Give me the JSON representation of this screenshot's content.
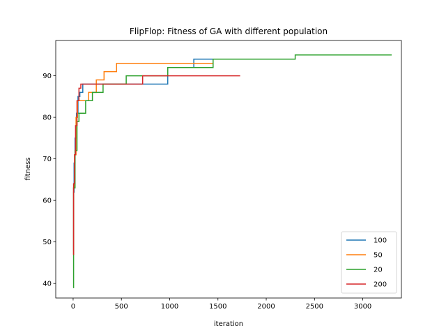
{
  "chart_data": {
    "type": "line",
    "title": "FlipFlop: Fitness of GA with different population",
    "xlabel": "iteration",
    "ylabel": "fitness",
    "xlim": [
      -180,
      3400
    ],
    "ylim": [
      36.5,
      98.5
    ],
    "xticks": [
      0,
      500,
      1000,
      1500,
      2000,
      2500,
      3000
    ],
    "yticks": [
      40,
      50,
      60,
      70,
      80,
      90
    ],
    "grid": false,
    "legend_position": "bottom-right",
    "series": [
      {
        "name": "100",
        "color": "#1f77b4",
        "x": [
          0,
          5,
          10,
          20,
          35,
          50,
          70,
          100,
          200,
          300,
          500,
          700,
          880,
          980,
          1250,
          1450,
          1700
        ],
        "y": [
          48,
          62,
          69,
          75,
          81,
          85,
          86,
          88,
          88,
          88,
          88,
          88,
          88,
          92,
          94,
          94,
          94
        ]
      },
      {
        "name": "50",
        "color": "#ff7f0e",
        "x": [
          0,
          5,
          15,
          30,
          45,
          60,
          80,
          100,
          130,
          160,
          240,
          320,
          450,
          700,
          1000,
          1250,
          1450
        ],
        "y": [
          47,
          63,
          71,
          80,
          84,
          84,
          84,
          84,
          84,
          86,
          89,
          91,
          93,
          93,
          93,
          93,
          93
        ]
      },
      {
        "name": "20",
        "color": "#2ca02c",
        "x": [
          0,
          5,
          20,
          40,
          60,
          130,
          200,
          310,
          550,
          980,
          1450,
          2300,
          3300
        ],
        "y": [
          39,
          63,
          72,
          79,
          81,
          84,
          86,
          88,
          90,
          92,
          94,
          95,
          95
        ]
      },
      {
        "name": "200",
        "color": "#d62728",
        "x": [
          0,
          5,
          15,
          25,
          40,
          60,
          80,
          200,
          400,
          720,
          1000,
          1730
        ],
        "y": [
          47,
          64,
          71,
          78,
          84,
          87,
          88,
          88,
          88,
          90,
          90,
          90
        ]
      }
    ]
  }
}
